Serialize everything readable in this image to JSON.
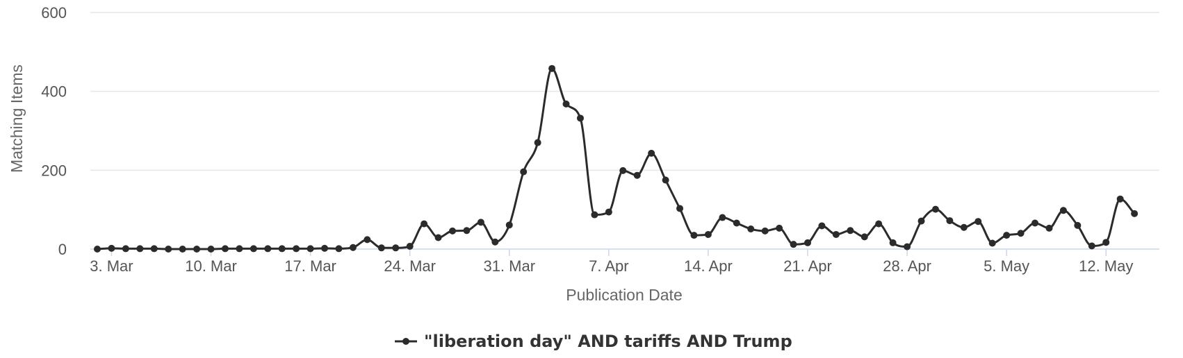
{
  "chart_data": {
    "type": "line",
    "smooth": true,
    "xlabel": "Publication Date",
    "ylabel": "Matching Items",
    "ylim": [
      0,
      600
    ],
    "y_ticks": [
      0,
      200,
      400,
      600
    ],
    "x_ticks": [
      {
        "date": "2025-03-03",
        "label": "3. Mar"
      },
      {
        "date": "2025-03-10",
        "label": "10. Mar"
      },
      {
        "date": "2025-03-17",
        "label": "17. Mar"
      },
      {
        "date": "2025-03-24",
        "label": "24. Mar"
      },
      {
        "date": "2025-03-31",
        "label": "31. Mar"
      },
      {
        "date": "2025-04-07",
        "label": "7. Apr"
      },
      {
        "date": "2025-04-14",
        "label": "14. Apr"
      },
      {
        "date": "2025-04-21",
        "label": "21. Apr"
      },
      {
        "date": "2025-04-28",
        "label": "28. Apr"
      },
      {
        "date": "2025-05-05",
        "label": "5. May"
      },
      {
        "date": "2025-05-12",
        "label": "12. May"
      }
    ],
    "grid": true,
    "legend_position": "bottom-center",
    "line_color": "#2b2b2b",
    "series": [
      {
        "name": "\"liberation day\" AND tariffs AND Trump",
        "x": [
          "2025-03-02",
          "2025-03-03",
          "2025-03-04",
          "2025-03-05",
          "2025-03-06",
          "2025-03-07",
          "2025-03-08",
          "2025-03-09",
          "2025-03-10",
          "2025-03-11",
          "2025-03-12",
          "2025-03-13",
          "2025-03-14",
          "2025-03-15",
          "2025-03-16",
          "2025-03-17",
          "2025-03-18",
          "2025-03-19",
          "2025-03-20",
          "2025-03-21",
          "2025-03-22",
          "2025-03-23",
          "2025-03-24",
          "2025-03-25",
          "2025-03-26",
          "2025-03-27",
          "2025-03-28",
          "2025-03-29",
          "2025-03-30",
          "2025-03-31",
          "2025-04-01",
          "2025-04-02",
          "2025-04-03",
          "2025-04-04",
          "2025-04-05",
          "2025-04-06",
          "2025-04-07",
          "2025-04-08",
          "2025-04-09",
          "2025-04-10",
          "2025-04-11",
          "2025-04-12",
          "2025-04-13",
          "2025-04-14",
          "2025-04-15",
          "2025-04-16",
          "2025-04-17",
          "2025-04-18",
          "2025-04-19",
          "2025-04-20",
          "2025-04-21",
          "2025-04-22",
          "2025-04-23",
          "2025-04-24",
          "2025-04-25",
          "2025-04-26",
          "2025-04-27",
          "2025-04-28",
          "2025-04-29",
          "2025-04-30",
          "2025-05-01",
          "2025-05-02",
          "2025-05-03",
          "2025-05-04",
          "2025-05-05",
          "2025-05-06",
          "2025-05-07",
          "2025-05-08",
          "2025-05-09",
          "2025-05-10",
          "2025-05-11",
          "2025-05-12",
          "2025-05-13",
          "2025-05-14"
        ],
        "values": [
          0,
          2,
          1,
          1,
          1,
          0,
          0,
          0,
          0,
          1,
          1,
          1,
          1,
          1,
          1,
          1,
          2,
          1,
          4,
          24,
          3,
          3,
          7,
          64,
          29,
          46,
          47,
          68,
          18,
          61,
          196,
          270,
          458,
          368,
          332,
          87,
          94,
          199,
          187,
          243,
          175,
          103,
          35,
          37,
          80,
          66,
          51,
          46,
          53,
          12,
          16,
          59,
          37,
          47,
          31,
          64,
          16,
          6,
          71,
          101,
          72,
          55,
          70,
          15,
          35,
          40,
          66,
          53,
          98,
          60,
          8,
          17,
          127,
          90
        ]
      }
    ]
  }
}
